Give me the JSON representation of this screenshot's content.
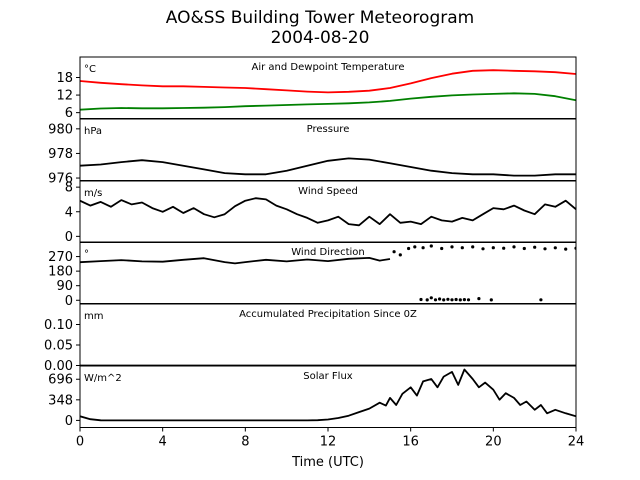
{
  "figure": {
    "title_line1": "AO&SS Building Tower Meteorogram",
    "title_line2": "2004-08-20",
    "xlabel": "Time (UTC)"
  },
  "chart_data": {
    "type": "line",
    "x_axis": {
      "label": "Time (UTC)",
      "range": [
        0,
        24
      ],
      "ticks": [
        0,
        4,
        8,
        12,
        16,
        20,
        24
      ]
    },
    "panels": [
      {
        "id": "temperature",
        "title": "Air and Dewpoint Temperature",
        "unit": "°C",
        "ylim": [
          4,
          25
        ],
        "yticks": [
          6,
          12,
          18
        ],
        "series": [
          {
            "name": "",
            "color": "#ff0000",
            "style": "line",
            "x": [
              0,
              1,
              2,
              3,
              4,
              5,
              6,
              7,
              8,
              9,
              10,
              11,
              12,
              13,
              14,
              15,
              16,
              17,
              18,
              19,
              20,
              21,
              22,
              23,
              24
            ],
            "y": [
              16.8,
              16.2,
              15.7,
              15.3,
              15.0,
              15.0,
              14.8,
              14.6,
              14.4,
              14.0,
              13.6,
              13.2,
              12.9,
              13.1,
              13.5,
              14.4,
              16.0,
              17.8,
              19.3,
              20.3,
              20.5,
              20.3,
              20.1,
              19.8,
              19.2
            ]
          },
          {
            "name": "",
            "color": "#008000",
            "style": "line",
            "x": [
              0,
              1,
              2,
              3,
              4,
              5,
              6,
              7,
              8,
              9,
              10,
              11,
              12,
              13,
              14,
              15,
              16,
              17,
              18,
              19,
              20,
              21,
              22,
              23,
              24
            ],
            "y": [
              7.0,
              7.4,
              7.6,
              7.5,
              7.5,
              7.6,
              7.7,
              7.9,
              8.2,
              8.4,
              8.6,
              8.8,
              9.0,
              9.2,
              9.5,
              10.0,
              10.8,
              11.4,
              11.9,
              12.2,
              12.4,
              12.6,
              12.4,
              11.6,
              10.2
            ]
          }
        ]
      },
      {
        "id": "pressure",
        "title": "Pressure",
        "unit": "hPa",
        "ylim": [
          975.8,
          980.8
        ],
        "yticks": [
          976,
          978,
          980
        ],
        "series": [
          {
            "name": "",
            "color": "#000000",
            "style": "line",
            "x": [
              0,
              1,
              2,
              3,
              4,
              5,
              6,
              7,
              8,
              9,
              10,
              11,
              12,
              13,
              14,
              15,
              16,
              17,
              18,
              19,
              20,
              21,
              22,
              23,
              24
            ],
            "y": [
              977.0,
              977.1,
              977.3,
              977.45,
              977.3,
              977.0,
              976.7,
              976.4,
              976.3,
              976.3,
              976.6,
              977.0,
              977.4,
              977.6,
              977.5,
              977.2,
              976.9,
              976.6,
              976.4,
              976.3,
              976.3,
              976.2,
              976.2,
              976.3,
              976.3
            ]
          }
        ]
      },
      {
        "id": "wind-speed",
        "title": "Wind Speed",
        "unit": "m/s",
        "ylim": [
          -1,
          9
        ],
        "yticks": [
          0,
          4,
          8
        ],
        "series": [
          {
            "name": "",
            "color": "#000000",
            "style": "line",
            "x": [
              0,
              0.5,
              1,
              1.5,
              2,
              2.5,
              3,
              3.5,
              4,
              4.5,
              5,
              5.5,
              6,
              6.5,
              7,
              7.5,
              8,
              8.5,
              9,
              9.5,
              10,
              10.5,
              11,
              11.5,
              12,
              12.5,
              13,
              13.5,
              14,
              14.5,
              15,
              15.5,
              16,
              16.5,
              17,
              17.5,
              18,
              18.5,
              19,
              19.5,
              20,
              20.5,
              21,
              21.5,
              22,
              22.5,
              23,
              23.5,
              24
            ],
            "y": [
              5.8,
              5.0,
              5.6,
              4.8,
              5.9,
              5.2,
              5.5,
              4.6,
              4.0,
              4.8,
              3.8,
              4.6,
              3.6,
              3.1,
              3.6,
              4.9,
              5.8,
              6.2,
              6.0,
              5.0,
              4.4,
              3.6,
              3.0,
              2.2,
              2.6,
              3.2,
              2.0,
              1.8,
              3.2,
              2.0,
              3.6,
              2.2,
              2.4,
              2.0,
              3.2,
              2.6,
              2.4,
              3.0,
              2.6,
              3.6,
              4.6,
              4.4,
              5.0,
              4.2,
              3.6,
              5.2,
              4.8,
              5.8,
              4.4
            ]
          }
        ]
      },
      {
        "id": "wind-direction",
        "title": "Wind Direction",
        "unit": "°",
        "ylim": [
          -20,
          360
        ],
        "yticks": [
          0,
          90,
          180,
          270
        ],
        "series": [
          {
            "name": "",
            "color": "#000000",
            "style": "line",
            "x": [
              0,
              1,
              2,
              3,
              4,
              5,
              6,
              7,
              7.5,
              8,
              9,
              10,
              11,
              12,
              13,
              14,
              14.5,
              15
            ],
            "y": [
              235,
              242,
              248,
              240,
              238,
              250,
              260,
              236,
              228,
              236,
              250,
              240,
              252,
              242,
              256,
              262,
              245,
              255
            ]
          },
          {
            "name": "",
            "color": "#000000",
            "style": "points",
            "x": [
              15.2,
              15.5,
              15.9,
              16.2,
              16.6,
              17.0,
              17.5,
              18.0,
              18.5,
              19.0,
              19.5,
              20.0,
              20.5,
              21.0,
              21.5,
              22.0,
              22.5,
              23.0,
              23.5,
              24.0
            ],
            "y": [
              300,
              280,
              320,
              330,
              325,
              335,
              320,
              330,
              325,
              330,
              318,
              325,
              322,
              330,
              320,
              328,
              318,
              324,
              316,
              322
            ]
          },
          {
            "name": "",
            "color": "#000000",
            "style": "points",
            "x": [
              16.5,
              16.8,
              17.0,
              17.2,
              17.4,
              17.6,
              17.8,
              18.0,
              18.2,
              18.4,
              18.6,
              18.8,
              19.3,
              19.9,
              22.3
            ],
            "y": [
              5,
              2,
              15,
              3,
              8,
              2,
              6,
              3,
              5,
              2,
              4,
              3,
              10,
              2,
              3
            ]
          }
        ]
      },
      {
        "id": "precipitation",
        "title": "Accumulated Precipitation Since 0Z",
        "unit": "mm",
        "ylim": [
          0,
          0.15
        ],
        "yticks": [
          0.0,
          0.05,
          0.1
        ],
        "ytick_labels": [
          "0.00",
          "0.05",
          "0.10"
        ],
        "series": [
          {
            "name": "",
            "color": "#000000",
            "style": "line",
            "x": [
              0,
              24
            ],
            "y": [
              0,
              0
            ]
          }
        ]
      },
      {
        "id": "solar",
        "title": "Solar Flux",
        "unit": "W/m^2",
        "ylim": [
          -120,
          920
        ],
        "yticks": [
          0,
          348,
          696
        ],
        "series": [
          {
            "name": "",
            "color": "#000000",
            "style": "line",
            "x": [
              0,
              0.5,
              1,
              2,
              4,
              6,
              8,
              10,
              11,
              11.5,
              12,
              12.5,
              13,
              13.5,
              14,
              14.5,
              14.8,
              15,
              15.3,
              15.6,
              16,
              16.3,
              16.6,
              17,
              17.3,
              17.6,
              18,
              18.3,
              18.6,
              19,
              19.3,
              19.6,
              20,
              20.3,
              20.6,
              21,
              21.3,
              21.6,
              22,
              22.3,
              22.6,
              23,
              23.5,
              24
            ],
            "y": [
              70,
              20,
              2,
              0,
              0,
              0,
              0,
              0,
              0,
              3,
              15,
              40,
              80,
              140,
              200,
              300,
              250,
              380,
              260,
              450,
              560,
              420,
              660,
              700,
              560,
              740,
              820,
              600,
              860,
              700,
              560,
              640,
              520,
              350,
              460,
              380,
              260,
              320,
              180,
              260,
              120,
              180,
              120,
              70
            ]
          }
        ]
      }
    ]
  }
}
